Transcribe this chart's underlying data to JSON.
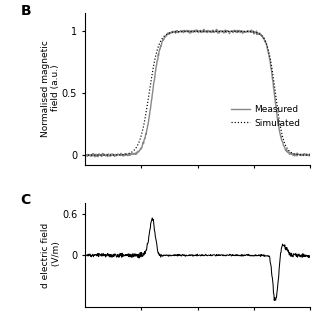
{
  "panel_B_label": "B",
  "panel_C_label": "C",
  "ylabel_B": "Normalised magnetic\n field (a.u.)",
  "ylabel_C": "d electric field\n (V/m)",
  "yticks_B": [
    0,
    0.5,
    1
  ],
  "ylim_B": [
    -0.08,
    1.15
  ],
  "ylim_C": [
    -0.75,
    0.75
  ],
  "yticks_C": [
    0,
    0.6
  ],
  "legend_measured": "Measured",
  "legend_simulated": "Simulated",
  "measured_color": "#888888",
  "simulated_color": "#000000",
  "line_color_C": "#000000",
  "background_color": "#ffffff",
  "n_points": 600
}
